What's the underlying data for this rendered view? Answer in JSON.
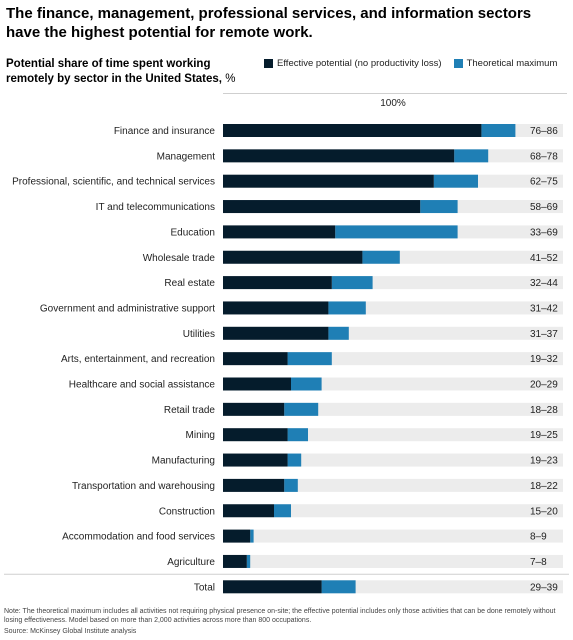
{
  "title": "The finance, management, professional services, and information sectors have the highest potential for remote work.",
  "subtitle_bold": "Potential share of time spent working remotely by sector in the United States,",
  "subtitle_unit": "%",
  "header_label": "100%",
  "colors": {
    "effective": "#051c2c",
    "theoretical": "#1f7fb5",
    "background": "#ececec"
  },
  "chart_data": {
    "type": "bar",
    "orientation": "horizontal",
    "stacked": true,
    "xlim": [
      0,
      100
    ],
    "legend_position": "top-right",
    "series": [
      {
        "name": "Effective potential (no productivity loss)",
        "key": "effective"
      },
      {
        "name": "Theoretical maximum",
        "key": "theoretical"
      }
    ],
    "rows": [
      {
        "category": "Finance and insurance",
        "effective": 76,
        "theoretical": 86,
        "label": "76–86"
      },
      {
        "category": "Management",
        "effective": 68,
        "theoretical": 78,
        "label": "68–78"
      },
      {
        "category": "Professional, scientific, and technical services",
        "effective": 62,
        "theoretical": 75,
        "label": "62–75"
      },
      {
        "category": "IT and telecommunications",
        "effective": 58,
        "theoretical": 69,
        "label": "58–69"
      },
      {
        "category": "Education",
        "effective": 33,
        "theoretical": 69,
        "label": "33–69"
      },
      {
        "category": "Wholesale trade",
        "effective": 41,
        "theoretical": 52,
        "label": "41–52"
      },
      {
        "category": "Real estate",
        "effective": 32,
        "theoretical": 44,
        "label": "32–44"
      },
      {
        "category": "Government and administrative support",
        "effective": 31,
        "theoretical": 42,
        "label": "31–42"
      },
      {
        "category": "Utilities",
        "effective": 31,
        "theoretical": 37,
        "label": "31–37"
      },
      {
        "category": "Arts, entertainment, and recreation",
        "effective": 19,
        "theoretical": 32,
        "label": "19–32"
      },
      {
        "category": "Healthcare and social assistance",
        "effective": 20,
        "theoretical": 29,
        "label": "20–29"
      },
      {
        "category": "Retail trade",
        "effective": 18,
        "theoretical": 28,
        "label": "18–28"
      },
      {
        "category": "Mining",
        "effective": 19,
        "theoretical": 25,
        "label": "19–25"
      },
      {
        "category": "Manufacturing",
        "effective": 19,
        "theoretical": 23,
        "label": "19–23"
      },
      {
        "category": "Transportation and warehousing",
        "effective": 18,
        "theoretical": 22,
        "label": "18–22"
      },
      {
        "category": "Construction",
        "effective": 15,
        "theoretical": 20,
        "label": "15–20"
      },
      {
        "category": "Accommodation and food services",
        "effective": 8,
        "theoretical": 9,
        "label": "8–9"
      },
      {
        "category": "Agriculture",
        "effective": 7,
        "theoretical": 8,
        "label": "7–8"
      },
      {
        "category": "Total",
        "effective": 29,
        "theoretical": 39,
        "label": "29–39"
      }
    ]
  },
  "footnote": "Note: The theoretical maximum includes all activities not requiring physical presence on-site; the effective potential includes only those activities that can be done remotely without losing effectiveness. Model based on more than 2,000 activities across more than 800 occupations.",
  "source": "Source: McKinsey Global Institute analysis"
}
